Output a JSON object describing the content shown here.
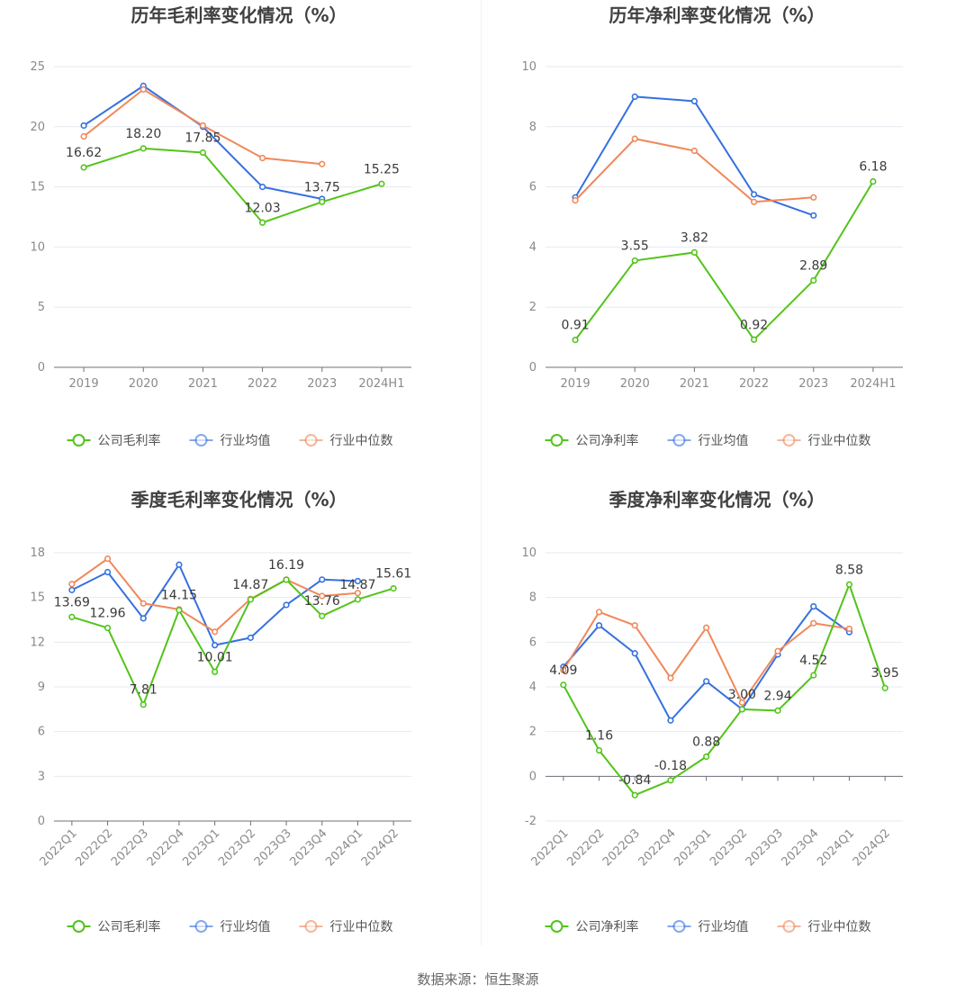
{
  "source_text": "数据来源：恒生聚源",
  "chart_data": [
    {
      "type": "line",
      "title": "历年毛利率变化情况（%）",
      "categories": [
        "2019",
        "2020",
        "2021",
        "2022",
        "2023",
        "2024H1"
      ],
      "ylim": [
        0,
        25
      ],
      "yticks": [
        0,
        5,
        10,
        15,
        20,
        25
      ],
      "grid": true,
      "legend_position": "bottom",
      "rotate_x": false,
      "series": [
        {
          "name": "公司毛利率",
          "color": "#52c41a",
          "values": [
            16.62,
            18.2,
            17.85,
            12.03,
            13.75,
            15.25
          ],
          "labels": [
            "16.62",
            "18.20",
            "17.85",
            "12.03",
            "13.75",
            "15.25"
          ]
        },
        {
          "name": "行业均值",
          "color": "#3571e0",
          "values": [
            20.1,
            23.4,
            20.0,
            15.0,
            14.0,
            null
          ]
        },
        {
          "name": "行业中位数",
          "color": "#f0885a",
          "values": [
            19.2,
            23.1,
            20.1,
            17.4,
            16.9,
            null
          ]
        }
      ]
    },
    {
      "type": "line",
      "title": "历年净利率变化情况（%）",
      "categories": [
        "2019",
        "2020",
        "2021",
        "2022",
        "2023",
        "2024H1"
      ],
      "ylim": [
        0,
        10
      ],
      "yticks": [
        0,
        2,
        4,
        6,
        8,
        10
      ],
      "grid": true,
      "legend_position": "bottom",
      "rotate_x": false,
      "series": [
        {
          "name": "公司净利率",
          "color": "#52c41a",
          "values": [
            0.91,
            3.55,
            3.82,
            0.92,
            2.89,
            6.18
          ],
          "labels": [
            "0.91",
            "3.55",
            "3.82",
            "0.92",
            "2.89",
            "6.18"
          ]
        },
        {
          "name": "行业均值",
          "color": "#3571e0",
          "values": [
            5.65,
            9.0,
            8.85,
            5.75,
            5.05,
            null
          ]
        },
        {
          "name": "行业中位数",
          "color": "#f0885a",
          "values": [
            5.55,
            7.6,
            7.2,
            5.5,
            5.65,
            null
          ]
        }
      ]
    },
    {
      "type": "line",
      "title": "季度毛利率变化情况（%）",
      "categories": [
        "2022Q1",
        "2022Q2",
        "2022Q3",
        "2022Q4",
        "2023Q1",
        "2023Q2",
        "2023Q3",
        "2023Q4",
        "2024Q1",
        "2024Q2"
      ],
      "ylim": [
        0,
        18
      ],
      "yticks": [
        0,
        3,
        6,
        9,
        12,
        15,
        18
      ],
      "grid": true,
      "legend_position": "bottom",
      "rotate_x": true,
      "series": [
        {
          "name": "公司毛利率",
          "color": "#52c41a",
          "values": [
            13.69,
            12.96,
            7.81,
            14.15,
            10.01,
            14.87,
            16.19,
            13.76,
            14.87,
            15.61
          ],
          "labels": [
            "13.69",
            "12.96",
            "7.81",
            "14.15",
            "10.01",
            "14.87",
            "16.19",
            "13.76",
            "14.87",
            "15.61"
          ]
        },
        {
          "name": "行业均值",
          "color": "#3571e0",
          "values": [
            15.5,
            16.7,
            13.6,
            17.2,
            11.8,
            12.3,
            14.5,
            16.2,
            16.1,
            null
          ]
        },
        {
          "name": "行业中位数",
          "color": "#f0885a",
          "values": [
            15.9,
            17.6,
            14.6,
            14.2,
            12.7,
            14.9,
            16.2,
            15.1,
            15.3,
            null
          ]
        }
      ]
    },
    {
      "type": "line",
      "title": "季度净利率变化情况（%）",
      "categories": [
        "2022Q1",
        "2022Q2",
        "2022Q3",
        "2022Q4",
        "2023Q1",
        "2023Q2",
        "2023Q3",
        "2023Q4",
        "2024Q1",
        "2024Q2"
      ],
      "ylim": [
        -2,
        10
      ],
      "yticks": [
        -2,
        0,
        2,
        4,
        6,
        8,
        10
      ],
      "grid": true,
      "legend_position": "bottom",
      "rotate_x": true,
      "series": [
        {
          "name": "公司净利率",
          "color": "#52c41a",
          "values": [
            4.09,
            1.16,
            -0.84,
            -0.18,
            0.88,
            3.0,
            2.94,
            4.52,
            8.58,
            3.95
          ],
          "labels": [
            "4.09",
            "1.16",
            "-0.84",
            "-0.18",
            "0.88",
            "3.00",
            "2.94",
            "4.52",
            "8.58",
            "3.95"
          ]
        },
        {
          "name": "行业均值",
          "color": "#3571e0",
          "values": [
            4.9,
            6.75,
            5.5,
            2.5,
            4.25,
            3.0,
            5.45,
            7.6,
            6.45,
            null
          ]
        },
        {
          "name": "行业中位数",
          "color": "#f0885a",
          "values": [
            4.75,
            7.35,
            6.75,
            4.4,
            6.65,
            3.3,
            5.6,
            6.85,
            6.6,
            null
          ]
        }
      ]
    }
  ]
}
